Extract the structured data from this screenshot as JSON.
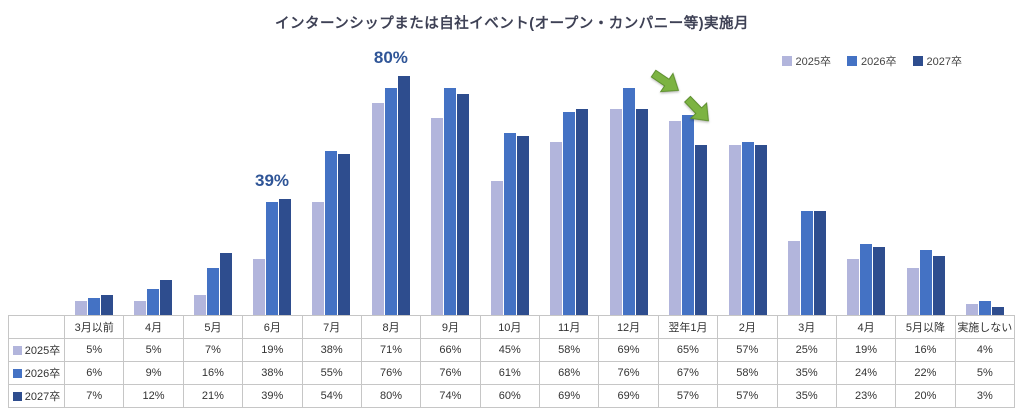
{
  "chart_data": {
    "type": "bar",
    "title": "インターンシップまたは自社イベント(オープン・カンパニー等)実施月",
    "categories": [
      "3月以前",
      "4月",
      "5月",
      "6月",
      "7月",
      "8月",
      "9月",
      "10月",
      "11月",
      "12月",
      "翌年1月",
      "2月",
      "3月",
      "4月",
      "5月以降",
      "実施しない"
    ],
    "series": [
      {
        "name": "2025卒",
        "color": "#b2b5dc",
        "values": [
          5,
          5,
          7,
          19,
          38,
          71,
          66,
          45,
          58,
          69,
          65,
          57,
          25,
          19,
          16,
          4
        ]
      },
      {
        "name": "2026卒",
        "color": "#4472c4",
        "values": [
          6,
          9,
          16,
          38,
          55,
          76,
          76,
          61,
          68,
          76,
          67,
          58,
          35,
          24,
          22,
          5
        ]
      },
      {
        "name": "2027卒",
        "color": "#2e4d8e",
        "values": [
          7,
          12,
          21,
          39,
          54,
          80,
          74,
          60,
          69,
          69,
          57,
          57,
          35,
          23,
          20,
          3
        ]
      }
    ],
    "annotations": [
      {
        "text": "39%",
        "category_index": 3,
        "color": "#2f5597"
      },
      {
        "text": "80%",
        "category_index": 5,
        "color": "#2f5597"
      }
    ],
    "arrows": {
      "category_index": 10,
      "count": 2,
      "color": "#7cb342",
      "stroke": "#5e8f2f",
      "meaning": "decline-indicator"
    },
    "ylim": [
      0,
      85
    ],
    "grid": false,
    "legend_position": "top-right",
    "value_suffix": "%",
    "table_corner_label": ""
  }
}
